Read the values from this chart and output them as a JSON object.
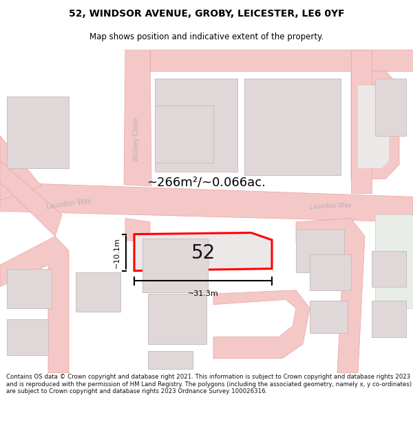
{
  "title": "52, WINDSOR AVENUE, GROBY, LEICESTER, LE6 0YF",
  "subtitle": "Map shows position and indicative extent of the property.",
  "footer": "Contains OS data © Crown copyright and database right 2021. This information is subject to Crown copyright and database rights 2023 and is reproduced with the permission of HM Land Registry. The polygons (including the associated geometry, namely x, y co-ordinates) are subject to Crown copyright and database rights 2023 Ordnance Survey 100026316.",
  "area_text": "~266m²/~0.066ac.",
  "dim_width": "~31.3m",
  "dim_height": "~10.1m",
  "house_number": "52",
  "map_bg": "#ede8e8",
  "road_color": "#f5c8c8",
  "road_stroke": "#e8a0a0",
  "building_fill": "#e0d8d8",
  "building_stroke": "#c8bebe",
  "highlight_fill": "#ede8e8",
  "highlight_stroke": "#ff0000",
  "text_road_color": "#b8b0b0",
  "title_color": "#000000",
  "footer_color": "#111111",
  "dim_color": "#000000",
  "white_bg": "#ffffff",
  "green_fill": "#e8ede8"
}
